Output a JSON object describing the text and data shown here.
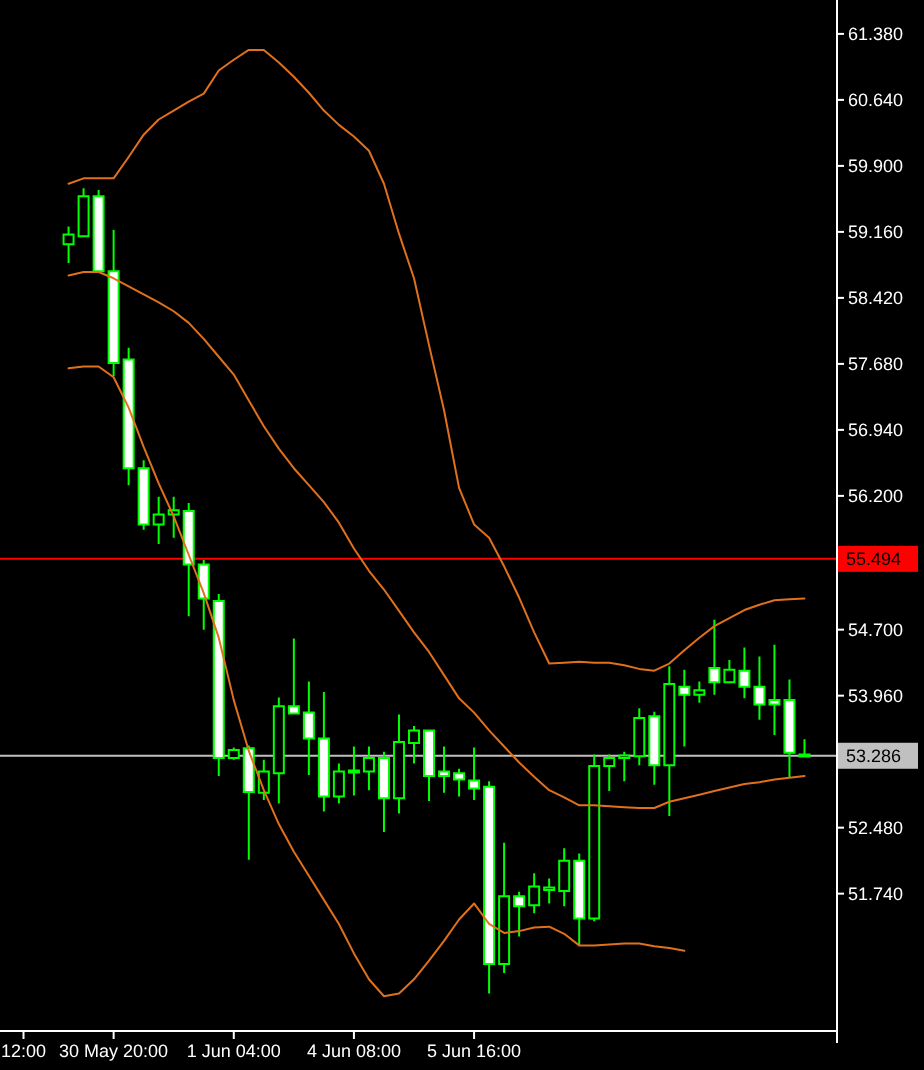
{
  "chart_data": {
    "type": "candlestick",
    "categories": [
      "12:00",
      null,
      null,
      null,
      null,
      null,
      "30 May 20:00",
      null,
      null,
      null,
      null,
      null,
      null,
      null,
      "1 Jun 04:00",
      null,
      null,
      null,
      null,
      null,
      null,
      null,
      "4 Jun 08:00",
      null,
      null,
      null,
      null,
      null,
      null,
      null,
      "5 Jun 16:00",
      null,
      null,
      null,
      null,
      null,
      null,
      null,
      null,
      null,
      null,
      null,
      null,
      null,
      null,
      null,
      null,
      null,
      null,
      null,
      null,
      null,
      null
    ],
    "ohlc": [
      null,
      null,
      null,
      [
        59.02,
        59.22,
        58.81,
        59.13
      ],
      [
        59.11,
        59.65,
        59.1,
        59.56
      ],
      [
        59.56,
        59.63,
        58.71,
        58.72
      ],
      [
        58.72,
        59.18,
        57.54,
        57.69
      ],
      [
        57.73,
        57.86,
        56.32,
        56.51
      ],
      [
        56.51,
        56.6,
        55.82,
        55.88
      ],
      [
        55.88,
        56.19,
        55.66,
        55.99
      ],
      [
        55.99,
        56.19,
        55.73,
        56.04
      ],
      [
        56.03,
        56.12,
        54.85,
        55.43
      ],
      [
        55.43,
        55.48,
        54.7,
        55.05
      ],
      [
        55.02,
        55.1,
        53.06,
        53.26
      ],
      [
        53.26,
        53.38,
        53.24,
        53.35
      ],
      [
        53.37,
        53.4,
        52.12,
        52.88
      ],
      [
        52.87,
        53.24,
        52.79,
        53.11
      ],
      [
        53.09,
        53.94,
        52.75,
        53.84
      ],
      [
        53.84,
        54.6,
        53.75,
        53.76
      ],
      [
        53.77,
        54.12,
        53.07,
        53.48
      ],
      [
        53.48,
        54.0,
        52.66,
        52.83
      ],
      [
        52.83,
        53.2,
        52.75,
        53.11
      ],
      [
        53.1,
        53.39,
        52.84,
        53.12
      ],
      [
        53.11,
        53.39,
        52.9,
        53.26
      ],
      [
        53.26,
        53.33,
        52.43,
        52.81
      ],
      [
        52.81,
        53.75,
        52.64,
        53.44
      ],
      [
        53.43,
        53.62,
        53.2,
        53.57
      ],
      [
        53.57,
        53.58,
        52.78,
        53.06
      ],
      [
        53.11,
        53.39,
        52.87,
        53.06
      ],
      [
        53.09,
        53.14,
        52.83,
        53.02
      ],
      [
        53.01,
        53.38,
        52.79,
        52.92
      ],
      [
        52.94,
        53.0,
        50.62,
        50.95
      ],
      [
        50.95,
        52.31,
        50.85,
        51.71
      ],
      [
        51.71,
        51.76,
        51.26,
        51.6
      ],
      [
        51.61,
        51.97,
        51.52,
        51.82
      ],
      [
        51.78,
        51.91,
        51.63,
        51.81
      ],
      [
        51.77,
        52.25,
        51.6,
        52.11
      ],
      [
        52.11,
        52.19,
        51.16,
        51.46
      ],
      [
        51.46,
        53.3,
        51.43,
        53.17
      ],
      [
        53.17,
        53.3,
        52.89,
        53.26
      ],
      [
        53.26,
        53.33,
        53.0,
        53.29
      ],
      [
        53.28,
        53.82,
        53.18,
        53.71
      ],
      [
        53.73,
        53.78,
        52.96,
        53.18
      ],
      [
        53.18,
        54.29,
        52.61,
        54.09
      ],
      [
        54.06,
        54.25,
        53.39,
        53.97
      ],
      [
        53.97,
        54.12,
        53.88,
        54.02
      ],
      [
        54.27,
        54.81,
        53.97,
        54.11
      ],
      [
        54.11,
        54.36,
        54.1,
        54.25
      ],
      [
        54.24,
        54.5,
        53.93,
        54.06
      ],
      [
        54.06,
        54.4,
        53.69,
        53.86
      ],
      [
        53.91,
        54.53,
        53.52,
        53.86
      ],
      [
        53.91,
        54.14,
        53.04,
        53.32
      ],
      [
        53.3,
        53.47,
        53.28,
        53.29
      ]
    ],
    "color": "#00ff00",
    "colors": [
      null,
      null,
      null,
      "#000000",
      "#000000",
      "#ffffff",
      "#ffffff",
      "#ffffff",
      "#ffffff",
      "#000000",
      "#000000",
      "#ffffff",
      "#ffffff",
      "#ffffff",
      "#000000",
      "#ffffff",
      "#000000",
      "#000000",
      "#ffffff",
      "#ffffff",
      "#ffffff",
      "#000000",
      "#000000",
      "#000000",
      "#ffffff",
      "#000000",
      "#000000",
      "#ffffff",
      "#ffffff",
      "#ffffff",
      "#ffffff",
      "#ffffff",
      "#000000",
      "#ffffff",
      "#000000",
      "#000000",
      "#000000",
      "#ffffff",
      "#000000",
      "#000000",
      "#000000",
      "#000000",
      "#ffffff",
      "#000000",
      "#ffffff",
      "#000000",
      "#ffffff",
      "#000000",
      "#ffffff",
      "#ffffff",
      "#ffffff",
      "#ffffff",
      "#ffffff"
    ],
    "series": [
      {
        "type": "line",
        "color": "#e0701c",
        "values": [
          null,
          null,
          null,
          59.7,
          59.76,
          59.76,
          59.76,
          60.0,
          60.25,
          60.42,
          60.52,
          60.62,
          60.71,
          60.97,
          61.09,
          61.2,
          61.2,
          61.06,
          60.9,
          60.72,
          60.52,
          60.36,
          60.23,
          60.07,
          59.7,
          59.14,
          58.64,
          57.89,
          57.16,
          56.29,
          55.88,
          55.73,
          55.41,
          55.06,
          54.67,
          54.32,
          54.33,
          54.34,
          54.33,
          54.33,
          54.3,
          54.26,
          54.24,
          54.32,
          54.47,
          54.61,
          54.74,
          54.83,
          54.92,
          54.98,
          55.03,
          55.04,
          55.05
        ]
      },
      {
        "type": "line",
        "color": "#e0701c",
        "values": [
          null,
          null,
          null,
          58.67,
          58.71,
          58.71,
          58.64,
          58.55,
          58.46,
          58.37,
          58.27,
          58.14,
          57.96,
          57.76,
          57.56,
          57.27,
          56.98,
          56.73,
          56.51,
          56.32,
          56.13,
          55.9,
          55.61,
          55.36,
          55.15,
          54.91,
          54.67,
          54.45,
          54.19,
          53.93,
          53.77,
          53.57,
          53.39,
          53.21,
          53.05,
          52.9,
          52.82,
          52.73,
          52.73,
          52.72,
          52.71,
          52.7,
          52.7,
          52.77,
          52.81,
          52.85,
          52.89,
          52.93,
          52.97,
          52.99,
          53.02,
          53.04,
          53.06
        ]
      },
      {
        "type": "line",
        "color": "#e0701c",
        "values": [
          null,
          null,
          null,
          57.63,
          57.65,
          57.65,
          57.53,
          57.19,
          56.75,
          56.34,
          55.97,
          55.54,
          55.11,
          54.61,
          53.91,
          53.34,
          52.9,
          52.52,
          52.21,
          51.94,
          51.67,
          51.4,
          51.07,
          50.78,
          50.59,
          50.62,
          50.78,
          50.99,
          51.21,
          51.45,
          51.63,
          51.4,
          51.3,
          51.32,
          51.36,
          51.37,
          51.29,
          51.16,
          51.16,
          51.17,
          51.18,
          51.18,
          51.15,
          51.13,
          51.1,
          null,
          null,
          null,
          null,
          null,
          null,
          null,
          null
        ]
      }
    ],
    "ylim": [
      50.2,
      61.76
    ],
    "yticks": [
      {
        "value": 61.38,
        "label": "61.380"
      },
      {
        "value": 60.64,
        "label": "60.640"
      },
      {
        "value": 59.9,
        "label": "59.900"
      },
      {
        "value": 59.16,
        "label": "59.160"
      },
      {
        "value": 58.42,
        "label": "58.420"
      },
      {
        "value": 57.68,
        "label": "57.680"
      },
      {
        "value": 56.94,
        "label": "56.940"
      },
      {
        "value": 56.2,
        "label": "56.200"
      },
      {
        "value": 54.7,
        "label": "54.700"
      },
      {
        "value": 53.96,
        "label": "53.960"
      },
      {
        "value": 52.48,
        "label": "52.480"
      },
      {
        "value": 51.74,
        "label": "51.740"
      }
    ],
    "ref_lines": [
      {
        "axis": "y",
        "value": 55.494,
        "label": "55.494",
        "color": "#ff0000"
      },
      {
        "axis": "y",
        "value": 53.286,
        "label": "53.286",
        "color": "#c0c0c0"
      }
    ]
  }
}
